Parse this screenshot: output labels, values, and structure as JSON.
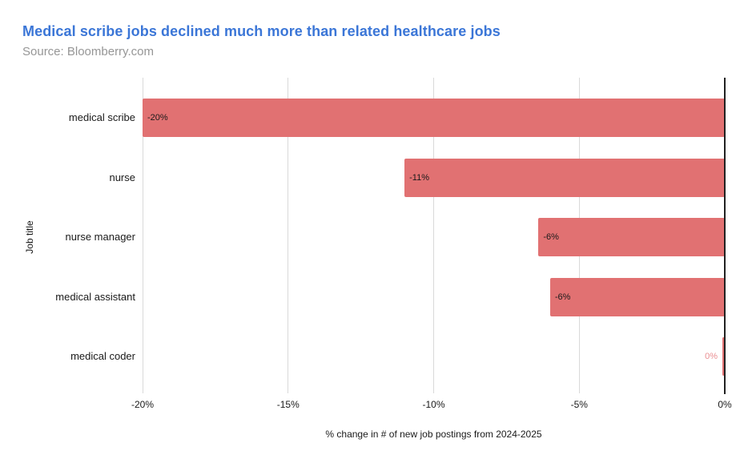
{
  "header": {
    "title": "Medical scribe jobs declined much more than related healthcare jobs",
    "source": "Source: Bloomberry.com"
  },
  "chart_data": {
    "type": "bar",
    "orientation": "horizontal",
    "title": "Medical scribe jobs declined much more than related healthcare jobs",
    "source": "Source: Bloomberry.com",
    "categories": [
      "medical scribe",
      "nurse",
      "nurse manager",
      "medical assistant",
      "medical coder"
    ],
    "values": [
      -20,
      -11,
      -6.4,
      -6,
      0
    ],
    "bar_labels": [
      "-20%",
      "-11%",
      "-6%",
      "-6%",
      "0%"
    ],
    "xlabel": "% change in # of new job postings from 2024-2025",
    "ylabel": "Job title",
    "xlim": [
      -20,
      0
    ],
    "xticks": [
      -20,
      -15,
      -10,
      -5,
      0
    ],
    "xtick_labels": [
      "-20%",
      "-15%",
      "-10%",
      "-5%",
      "0%"
    ],
    "grid": true,
    "legend": false,
    "colors": {
      "bar": "#e17172",
      "title": "#3b76d7",
      "source": "#969696",
      "gridline": "#d9d9d9",
      "zero_axis": "#212121",
      "tick_label": "#1a1a1a",
      "category_label": "#1a1a1a",
      "bar_value_label": "#1a1a1a",
      "outside_value_label": "#ea8f92",
      "axis_title": "#1a1a1a"
    }
  }
}
